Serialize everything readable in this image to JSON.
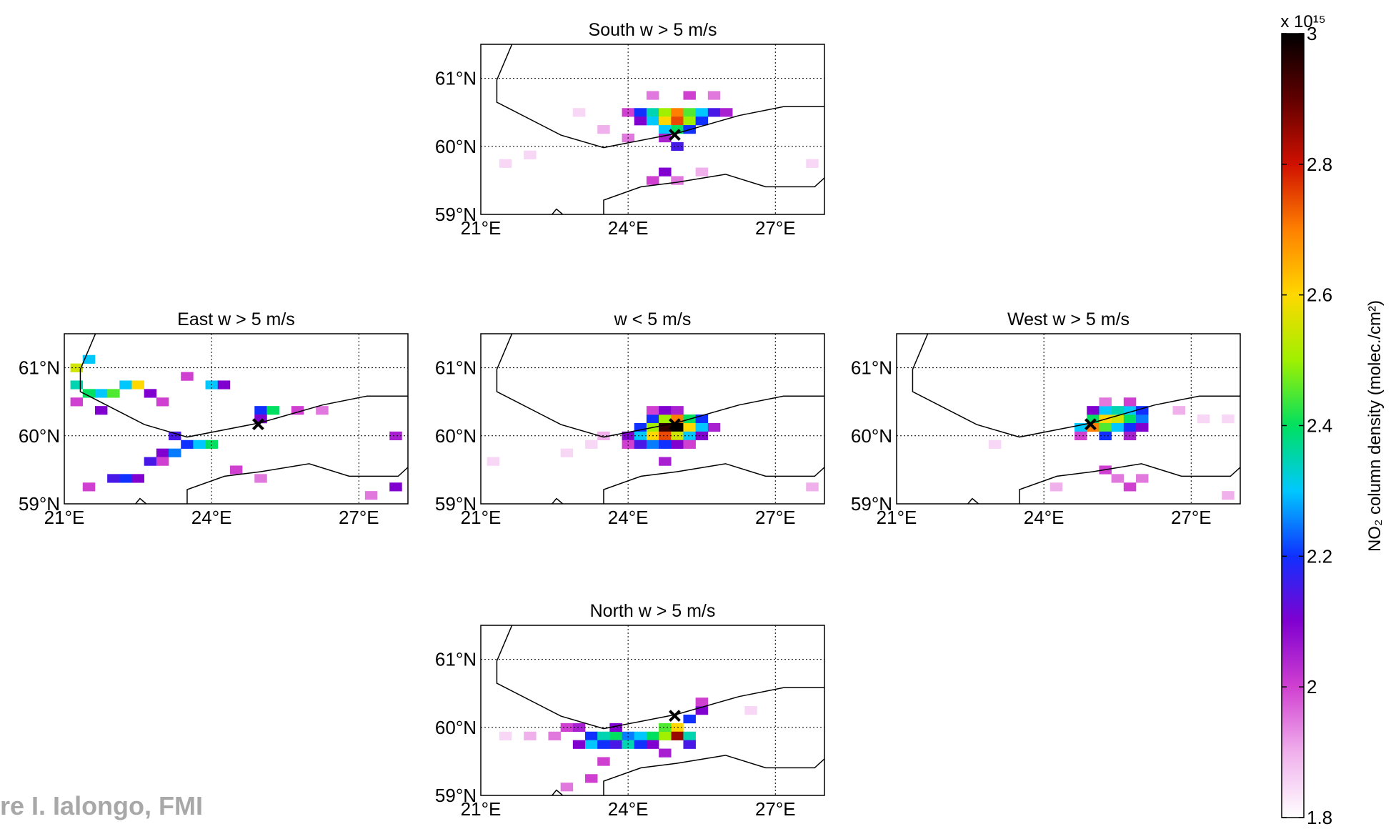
{
  "chart_data": [
    {
      "type": "heatmap",
      "title": "South w > 5 m/s",
      "xlim": [
        21,
        28
      ],
      "ylim": [
        59,
        61.5
      ],
      "xticks": [
        {
          "value": 21,
          "label": "21°E"
        },
        {
          "value": 24,
          "label": "24°E"
        },
        {
          "value": 27,
          "label": "27°E"
        }
      ],
      "yticks": [
        {
          "value": 59,
          "label": "59°N"
        },
        {
          "value": 60,
          "label": "60°N"
        },
        {
          "value": 61,
          "label": "61°N"
        }
      ],
      "grid": true,
      "marker": {
        "lon": 24.95,
        "lat": 60.17
      },
      "cells": [
        [
          24.0,
          60.5,
          2.0
        ],
        [
          24.25,
          60.5,
          2.2
        ],
        [
          24.5,
          60.5,
          2.35
        ],
        [
          24.75,
          60.5,
          2.5
        ],
        [
          25.0,
          60.5,
          2.7
        ],
        [
          25.25,
          60.5,
          2.45
        ],
        [
          25.5,
          60.5,
          2.3
        ],
        [
          25.75,
          60.5,
          2.15
        ],
        [
          26.0,
          60.5,
          2.05
        ],
        [
          24.25,
          60.375,
          2.1
        ],
        [
          24.5,
          60.375,
          2.3
        ],
        [
          24.75,
          60.375,
          2.6
        ],
        [
          25.0,
          60.375,
          2.75
        ],
        [
          25.25,
          60.375,
          2.5
        ],
        [
          25.5,
          60.375,
          2.2
        ],
        [
          24.75,
          60.25,
          2.3
        ],
        [
          25.0,
          60.25,
          2.4
        ],
        [
          25.25,
          60.25,
          2.2
        ],
        [
          24.75,
          60.125,
          2.05
        ],
        [
          25.0,
          60.0,
          2.15
        ],
        [
          24.5,
          60.75,
          1.95
        ],
        [
          25.25,
          60.75,
          2.0
        ],
        [
          25.75,
          60.75,
          1.95
        ],
        [
          23.0,
          60.5,
          1.85
        ],
        [
          23.5,
          60.25,
          1.9
        ],
        [
          24.0,
          60.125,
          1.95
        ],
        [
          24.5,
          59.5,
          2.0
        ],
        [
          24.75,
          59.625,
          2.1
        ],
        [
          25.0,
          59.5,
          1.95
        ],
        [
          25.5,
          59.625,
          1.9
        ],
        [
          21.5,
          59.75,
          1.85
        ],
        [
          22.0,
          59.875,
          1.85
        ],
        [
          27.75,
          59.75,
          1.85
        ]
      ]
    },
    {
      "type": "heatmap",
      "title": "East w > 5 m/s",
      "xlim": [
        21,
        28
      ],
      "ylim": [
        59,
        61.5
      ],
      "xticks": [
        {
          "value": 21,
          "label": "21°E"
        },
        {
          "value": 24,
          "label": "24°E"
        },
        {
          "value": 27,
          "label": "27°E"
        }
      ],
      "yticks": [
        {
          "value": 59,
          "label": "59°N"
        },
        {
          "value": 60,
          "label": "60°N"
        },
        {
          "value": 61,
          "label": "61°N"
        }
      ],
      "grid": true,
      "marker": {
        "lon": 24.95,
        "lat": 60.17
      },
      "cells": [
        [
          21.25,
          61.0,
          2.55
        ],
        [
          21.5,
          61.125,
          2.3
        ],
        [
          21.25,
          60.75,
          2.35
        ],
        [
          21.5,
          60.625,
          2.4
        ],
        [
          21.75,
          60.625,
          2.3
        ],
        [
          22.0,
          60.625,
          2.45
        ],
        [
          22.25,
          60.75,
          2.3
        ],
        [
          22.5,
          60.75,
          2.6
        ],
        [
          22.75,
          60.625,
          2.1
        ],
        [
          21.25,
          60.5,
          2.0
        ],
        [
          21.75,
          60.375,
          2.1
        ],
        [
          23.0,
          60.5,
          2.0
        ],
        [
          23.5,
          60.875,
          2.0
        ],
        [
          24.0,
          60.75,
          2.3
        ],
        [
          24.25,
          60.75,
          2.1
        ],
        [
          25.0,
          60.375,
          2.2
        ],
        [
          25.25,
          60.375,
          2.4
        ],
        [
          25.0,
          60.25,
          2.1
        ],
        [
          25.75,
          60.375,
          2.0
        ],
        [
          26.25,
          60.375,
          1.95
        ],
        [
          23.25,
          60.0,
          2.15
        ],
        [
          23.5,
          59.875,
          2.2
        ],
        [
          23.75,
          59.875,
          2.3
        ],
        [
          24.0,
          59.875,
          2.4
        ],
        [
          23.0,
          59.75,
          2.1
        ],
        [
          23.25,
          59.75,
          2.25
        ],
        [
          22.75,
          59.625,
          2.15
        ],
        [
          23.0,
          59.625,
          2.0
        ],
        [
          22.25,
          59.375,
          2.2
        ],
        [
          22.5,
          59.375,
          2.1
        ],
        [
          22.0,
          59.375,
          2.15
        ],
        [
          21.5,
          59.25,
          2.0
        ],
        [
          24.5,
          59.5,
          2.0
        ],
        [
          25.0,
          59.375,
          1.95
        ],
        [
          27.75,
          59.25,
          2.1
        ],
        [
          27.25,
          59.125,
          1.95
        ],
        [
          27.75,
          60.0,
          2.05
        ]
      ]
    },
    {
      "type": "heatmap",
      "title": "w < 5 m/s",
      "xlim": [
        21,
        28
      ],
      "ylim": [
        59,
        61.5
      ],
      "xticks": [
        {
          "value": 21,
          "label": "21°E"
        },
        {
          "value": 24,
          "label": "24°E"
        },
        {
          "value": 27,
          "label": "27°E"
        }
      ],
      "yticks": [
        {
          "value": 59,
          "label": "59°N"
        },
        {
          "value": 60,
          "label": "60°N"
        },
        {
          "value": 61,
          "label": "61°N"
        }
      ],
      "grid": true,
      "marker": {
        "lon": 24.95,
        "lat": 60.17
      },
      "cells": [
        [
          24.5,
          60.25,
          2.2
        ],
        [
          24.75,
          60.25,
          2.5
        ],
        [
          25.0,
          60.25,
          2.7
        ],
        [
          25.25,
          60.25,
          2.4
        ],
        [
          25.5,
          60.25,
          2.2
        ],
        [
          24.25,
          60.125,
          2.2
        ],
        [
          24.5,
          60.125,
          2.5
        ],
        [
          24.75,
          60.125,
          2.95
        ],
        [
          25.0,
          60.125,
          3.0
        ],
        [
          25.25,
          60.125,
          2.6
        ],
        [
          25.5,
          60.125,
          2.3
        ],
        [
          25.75,
          60.125,
          2.05
        ],
        [
          24.0,
          60.0,
          2.1
        ],
        [
          24.25,
          60.0,
          2.3
        ],
        [
          24.5,
          60.0,
          2.6
        ],
        [
          24.75,
          60.0,
          2.75
        ],
        [
          25.0,
          60.0,
          2.55
        ],
        [
          25.25,
          60.0,
          2.3
        ],
        [
          25.5,
          60.0,
          2.1
        ],
        [
          24.0,
          59.875,
          2.0
        ],
        [
          24.25,
          59.875,
          2.15
        ],
        [
          24.5,
          59.875,
          2.25
        ],
        [
          24.75,
          59.875,
          2.2
        ],
        [
          25.0,
          59.875,
          2.1
        ],
        [
          25.25,
          59.875,
          2.0
        ],
        [
          24.5,
          60.375,
          2.0
        ],
        [
          24.75,
          60.375,
          2.1
        ],
        [
          25.0,
          60.375,
          2.05
        ],
        [
          23.5,
          60.0,
          1.9
        ],
        [
          23.25,
          59.875,
          1.85
        ],
        [
          22.75,
          59.75,
          1.85
        ],
        [
          24.75,
          59.625,
          2.05
        ],
        [
          21.25,
          59.625,
          1.85
        ],
        [
          27.75,
          59.25,
          1.9
        ]
      ]
    },
    {
      "type": "heatmap",
      "title": "West w > 5 m/s",
      "xlim": [
        21,
        28
      ],
      "ylim": [
        59,
        61.5
      ],
      "xticks": [
        {
          "value": 21,
          "label": "21°E"
        },
        {
          "value": 24,
          "label": "24°E"
        },
        {
          "value": 27,
          "label": "27°E"
        }
      ],
      "yticks": [
        {
          "value": 59,
          "label": "59°N"
        },
        {
          "value": 60,
          "label": "60°N"
        },
        {
          "value": 61,
          "label": "61°N"
        }
      ],
      "grid": true,
      "marker": {
        "lon": 24.95,
        "lat": 60.17
      },
      "cells": [
        [
          25.0,
          60.25,
          2.4
        ],
        [
          25.25,
          60.25,
          2.6
        ],
        [
          25.5,
          60.25,
          2.55
        ],
        [
          25.75,
          60.25,
          2.4
        ],
        [
          26.0,
          60.25,
          2.25
        ],
        [
          24.75,
          60.125,
          2.3
        ],
        [
          25.0,
          60.125,
          2.7
        ],
        [
          25.25,
          60.125,
          2.45
        ],
        [
          25.5,
          60.125,
          2.3
        ],
        [
          25.75,
          60.125,
          2.2
        ],
        [
          26.0,
          60.125,
          2.1
        ],
        [
          25.0,
          60.375,
          2.1
        ],
        [
          25.25,
          60.375,
          2.3
        ],
        [
          25.5,
          60.375,
          2.35
        ],
        [
          25.75,
          60.375,
          2.3
        ],
        [
          26.0,
          60.375,
          2.2
        ],
        [
          25.25,
          60.5,
          1.95
        ],
        [
          25.75,
          60.5,
          2.0
        ],
        [
          26.75,
          60.375,
          1.9
        ],
        [
          27.25,
          60.25,
          1.85
        ],
        [
          27.75,
          60.25,
          1.85
        ],
        [
          24.75,
          60.0,
          2.0
        ],
        [
          25.25,
          60.0,
          2.2
        ],
        [
          25.75,
          60.0,
          2.05
        ],
        [
          25.25,
          59.5,
          2.0
        ],
        [
          25.5,
          59.375,
          1.95
        ],
        [
          25.75,
          59.25,
          2.0
        ],
        [
          26.0,
          59.375,
          1.95
        ],
        [
          24.25,
          59.25,
          1.9
        ],
        [
          27.75,
          59.125,
          1.9
        ],
        [
          23.0,
          59.875,
          1.85
        ]
      ]
    },
    {
      "type": "heatmap",
      "title": "North w > 5 m/s",
      "xlim": [
        21,
        28
      ],
      "ylim": [
        59,
        61.5
      ],
      "xticks": [
        {
          "value": 21,
          "label": "21°E"
        },
        {
          "value": 24,
          "label": "24°E"
        },
        {
          "value": 27,
          "label": "27°E"
        }
      ],
      "yticks": [
        {
          "value": 59,
          "label": "59°N"
        },
        {
          "value": 60,
          "label": "60°N"
        },
        {
          "value": 61,
          "label": "61°N"
        }
      ],
      "grid": true,
      "marker": {
        "lon": 24.95,
        "lat": 60.17
      },
      "cells": [
        [
          25.0,
          60.0,
          2.6
        ],
        [
          25.0,
          59.875,
          2.85
        ],
        [
          24.75,
          59.875,
          2.5
        ],
        [
          25.25,
          59.875,
          2.35
        ],
        [
          24.75,
          60.0,
          2.45
        ],
        [
          25.25,
          60.125,
          2.2
        ],
        [
          25.5,
          60.25,
          2.1
        ],
        [
          23.25,
          59.875,
          2.2
        ],
        [
          23.5,
          59.875,
          2.35
        ],
        [
          23.75,
          59.875,
          2.4
        ],
        [
          24.0,
          59.875,
          2.25
        ],
        [
          24.25,
          59.875,
          2.3
        ],
        [
          24.5,
          59.875,
          2.4
        ],
        [
          23.0,
          59.75,
          2.1
        ],
        [
          23.25,
          59.75,
          2.3
        ],
        [
          23.5,
          59.75,
          2.2
        ],
        [
          23.75,
          59.75,
          2.15
        ],
        [
          24.0,
          59.75,
          2.35
        ],
        [
          24.25,
          59.75,
          2.2
        ],
        [
          24.5,
          59.75,
          2.1
        ],
        [
          25.25,
          59.75,
          2.15
        ],
        [
          22.75,
          60.0,
          2.0
        ],
        [
          23.0,
          60.0,
          2.05
        ],
        [
          23.75,
          60.0,
          2.1
        ],
        [
          22.5,
          59.875,
          1.95
        ],
        [
          22.0,
          59.875,
          1.9
        ],
        [
          21.5,
          59.875,
          1.85
        ],
        [
          23.5,
          59.5,
          2.0
        ],
        [
          23.25,
          59.25,
          2.0
        ],
        [
          22.75,
          59.125,
          1.95
        ],
        [
          24.75,
          59.625,
          2.05
        ],
        [
          26.5,
          60.25,
          1.85
        ],
        [
          25.5,
          60.375,
          2.0
        ]
      ]
    }
  ],
  "colorbar": {
    "label": "NO₂ column density (molec./cm²)",
    "exponent_label": "x 10¹⁵",
    "ylim": [
      1.8,
      3
    ],
    "yticks": [
      1.8,
      2,
      2.2,
      2.4,
      2.6,
      2.8,
      3
    ],
    "colormap": [
      "#ffffff",
      "#f0b0ec",
      "#d040d0",
      "#8000d0",
      "#1030ff",
      "#00c8ff",
      "#00e060",
      "#a0f000",
      "#ffd800",
      "#ff8000",
      "#d01000",
      "#600000",
      "#000000"
    ]
  },
  "watermark": "re I. Ialongo, FMI"
}
